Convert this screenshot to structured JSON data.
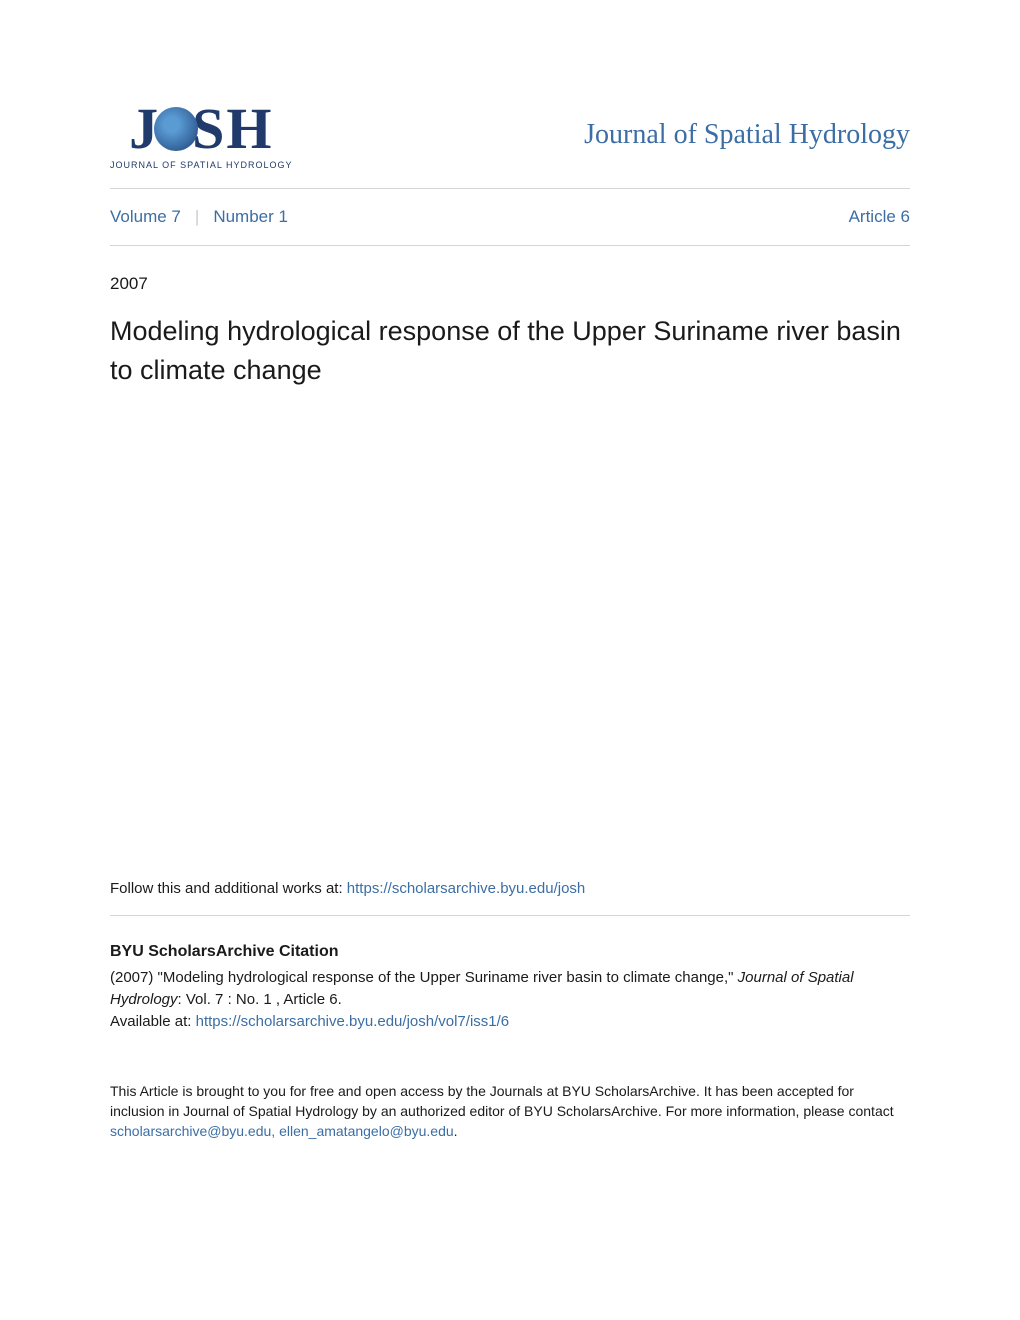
{
  "logo": {
    "main": "J",
    "main2": "SH",
    "subtitle": "JOURNAL OF SPATIAL HYDROLOGY"
  },
  "journal_title": "Journal of Spatial Hydrology",
  "meta": {
    "volume": "Volume 7",
    "number": "Number 1",
    "article": "Article 6"
  },
  "year": "2007",
  "article_title": "Modeling hydrological response of the Upper Suriname river basin to climate change",
  "follow": {
    "prefix": "Follow this and additional works at: ",
    "link": "https://scholarsarchive.byu.edu/josh"
  },
  "citation": {
    "heading": "BYU ScholarsArchive Citation",
    "text1": "(2007) \"Modeling hydrological response of the Upper Suriname river basin to climate change,\" ",
    "journal_italic": "Journal of Spatial Hydrology",
    "text2": ": Vol. 7 : No. 1 , Article 6.",
    "available_prefix": "Available at: ",
    "available_link": "https://scholarsarchive.byu.edu/josh/vol7/iss1/6"
  },
  "footer": {
    "text": "This Article is brought to you for free and open access by the Journals at BYU ScholarsArchive. It has been accepted for inclusion in Journal of Spatial Hydrology by an authorized editor of BYU ScholarsArchive. For more information, please contact ",
    "email": "scholarsarchive@byu.edu, ellen_amatangelo@byu.edu",
    "period": "."
  },
  "colors": {
    "link": "#3b6ea5",
    "text": "#1a1a1a",
    "border": "#d5d5d5",
    "logo_dark": "#1f3a6b"
  }
}
